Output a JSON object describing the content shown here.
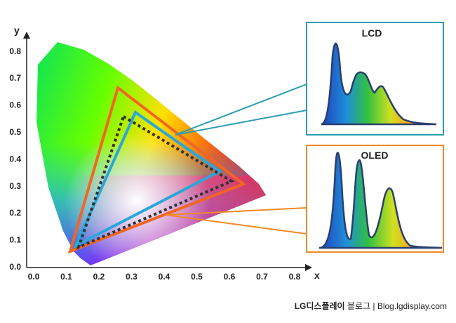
{
  "axes": {
    "x_label": "x",
    "y_label": "y",
    "x_ticks": [
      "0.0",
      "0.1",
      "0.2",
      "0.3",
      "0.4",
      "0.5",
      "0.6",
      "0.7",
      "0.8"
    ],
    "y_ticks": [
      "0.0",
      "0.1",
      "0.2",
      "0.3",
      "0.4",
      "0.5",
      "0.6",
      "0.7",
      "0.8"
    ]
  },
  "insets": [
    {
      "label": "LCD"
    },
    {
      "label": "OLED"
    }
  ],
  "footer": {
    "brand": "LG디스플레이",
    "text": "블로그 | Blog.lgdisplay.com"
  }
}
